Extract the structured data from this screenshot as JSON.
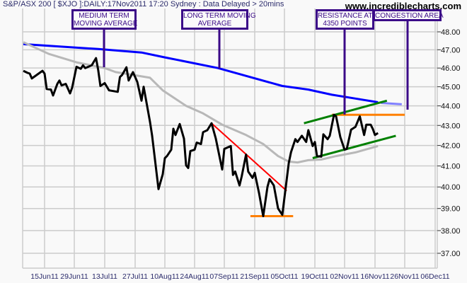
{
  "header": {
    "title": "S&P/ASX 200 [ $XJO ]:DAILY:17Nov2011 17:20 Sydney : Data Delayed > 20mins",
    "brand": "www.incrediblecharts.com"
  },
  "annotations": [
    {
      "line1": "MEDIUM TERM",
      "line2": "MOVING AVERAGE"
    },
    {
      "line1": "LONG TERM MOVING",
      "line2": "AVERAGE"
    },
    {
      "line1": "RESISTANCE AT",
      "line2": "4350 POINTS"
    },
    {
      "line1": "CONGESTION AREA",
      "line2": ""
    }
  ],
  "chart_data": {
    "type": "line",
    "title": "",
    "xlabel": "",
    "ylabel": "",
    "y_scale": "log",
    "ylim": [
      37,
      48
    ],
    "grid": true,
    "y_axis_position": "right",
    "y_ticks": [
      "48.00",
      "47.00",
      "46.00",
      "45.00",
      "44.00",
      "43.00",
      "42.00",
      "41.00",
      "40.00",
      "39.00",
      "38.00",
      "37.00"
    ],
    "x_ticks": [
      "15Jun11",
      "29Jun11",
      "13Jul11",
      "27Jul11",
      "10Aug11",
      "24Aug11",
      "07Sep11",
      "21Sep11",
      "05Oct11",
      "19Oct11",
      "02Nov11",
      "16Nov11",
      "26Nov11",
      "06Dec11"
    ],
    "colors": {
      "price": "#000000",
      "medium_ma": "#b8b8b8",
      "long_ma": "#0000ff",
      "long_ma_projection": "#8080ff",
      "downtrend": "#ff0000",
      "channel": "#008000",
      "support_resistance": "#ff8000",
      "annotation": "#3b0a88"
    },
    "series": [
      {
        "key": "price",
        "points": [
          [
            "2011-06-05",
            45.85
          ],
          [
            "2011-06-07",
            45.74
          ],
          [
            "2011-06-08",
            45.7
          ],
          [
            "2011-06-09",
            45.44
          ],
          [
            "2011-06-14",
            45.85
          ],
          [
            "2011-06-15",
            45.7
          ],
          [
            "2011-06-16",
            44.88
          ],
          [
            "2011-06-18",
            44.85
          ],
          [
            "2011-06-19",
            44.54
          ],
          [
            "2011-06-21",
            45.15
          ],
          [
            "2011-06-22",
            45.33
          ],
          [
            "2011-06-23",
            45.07
          ],
          [
            "2011-06-25",
            45.15
          ],
          [
            "2011-06-27",
            44.65
          ],
          [
            "2011-06-28",
            44.96
          ],
          [
            "2011-06-30",
            46.07
          ],
          [
            "2011-07-02",
            45.96
          ],
          [
            "2011-07-03",
            46.15
          ],
          [
            "2011-07-04",
            46.0
          ],
          [
            "2011-07-07",
            46.15
          ],
          [
            "2011-07-09",
            46.54
          ],
          [
            "2011-07-10",
            45.89
          ],
          [
            "2011-07-11",
            45.04
          ],
          [
            "2011-07-13",
            45.19
          ],
          [
            "2011-07-15",
            44.81
          ],
          [
            "2011-07-19",
            44.73
          ],
          [
            "2011-07-20",
            45.52
          ],
          [
            "2011-07-21",
            45.63
          ],
          [
            "2011-07-23",
            46.04
          ],
          [
            "2011-07-24",
            45.33
          ],
          [
            "2011-07-26",
            45.78
          ],
          [
            "2011-07-28",
            45.26
          ],
          [
            "2011-07-30",
            44.27
          ],
          [
            "2011-07-31",
            45.0
          ],
          [
            "2011-08-03",
            43.18
          ],
          [
            "2011-08-04",
            42.48
          ],
          [
            "2011-08-07",
            39.9
          ],
          [
            "2011-08-09",
            40.6
          ],
          [
            "2011-08-10",
            41.38
          ],
          [
            "2011-08-11",
            41.48
          ],
          [
            "2011-08-13",
            41.79
          ],
          [
            "2011-08-14",
            42.83
          ],
          [
            "2011-08-15",
            42.52
          ],
          [
            "2011-08-17",
            43.07
          ],
          [
            "2011-08-19",
            42.34
          ],
          [
            "2011-08-20",
            41.03
          ],
          [
            "2011-08-21",
            40.9
          ],
          [
            "2011-08-22",
            41.72
          ],
          [
            "2011-08-24",
            41.79
          ],
          [
            "2011-08-25",
            42.14
          ],
          [
            "2011-08-27",
            42.07
          ],
          [
            "2011-08-28",
            42.66
          ],
          [
            "2011-08-30",
            42.76
          ],
          [
            "2011-09-01",
            43.11
          ],
          [
            "2011-09-03",
            42.34
          ],
          [
            "2011-09-06",
            40.83
          ],
          [
            "2011-09-07",
            41.83
          ],
          [
            "2011-09-10",
            41.97
          ],
          [
            "2011-09-11",
            40.57
          ],
          [
            "2011-09-12",
            40.73
          ],
          [
            "2011-09-14",
            40.07
          ],
          [
            "2011-09-15",
            40.5
          ],
          [
            "2011-09-17",
            41.55
          ],
          [
            "2011-09-18",
            40.73
          ],
          [
            "2011-09-20",
            40.43
          ],
          [
            "2011-09-21",
            40.67
          ],
          [
            "2011-09-23",
            39.73
          ],
          [
            "2011-09-25",
            38.65
          ],
          [
            "2011-09-27",
            40.0
          ],
          [
            "2011-09-28",
            40.37
          ],
          [
            "2011-09-30",
            40.07
          ],
          [
            "2011-10-02",
            39.0
          ],
          [
            "2011-10-04",
            38.71
          ],
          [
            "2011-10-05",
            39.5
          ],
          [
            "2011-10-07",
            41.14
          ],
          [
            "2011-10-08",
            41.66
          ],
          [
            "2011-10-10",
            42.31
          ],
          [
            "2011-10-11",
            42.17
          ],
          [
            "2011-10-13",
            42.48
          ],
          [
            "2011-10-15",
            42.17
          ],
          [
            "2011-10-16",
            42.76
          ],
          [
            "2011-10-18",
            41.97
          ],
          [
            "2011-10-19",
            42.17
          ],
          [
            "2011-10-20",
            41.48
          ],
          [
            "2011-10-22",
            41.45
          ],
          [
            "2011-10-23",
            42.55
          ],
          [
            "2011-10-25",
            42.31
          ],
          [
            "2011-10-26",
            42.48
          ],
          [
            "2011-10-28",
            43.54
          ],
          [
            "2011-10-29",
            43.46
          ],
          [
            "2011-10-31",
            42.41
          ],
          [
            "2011-11-02",
            41.79
          ],
          [
            "2011-11-03",
            41.83
          ],
          [
            "2011-11-05",
            42.79
          ],
          [
            "2011-11-07",
            42.93
          ],
          [
            "2011-11-09",
            43.46
          ],
          [
            "2011-11-11",
            42.52
          ],
          [
            "2011-11-12",
            43.04
          ],
          [
            "2011-11-14",
            43.04
          ],
          [
            "2011-11-15",
            42.82
          ],
          [
            "2011-11-16",
            42.52
          ],
          [
            "2011-11-17",
            42.62
          ]
        ]
      },
      {
        "key": "medium_ma",
        "points": [
          [
            "2011-06-05",
            47.42
          ],
          [
            "2011-06-17",
            46.77
          ],
          [
            "2011-06-30",
            46.31
          ],
          [
            "2011-07-13",
            46.0
          ],
          [
            "2011-07-18",
            45.78
          ],
          [
            "2011-08-03",
            45.48
          ],
          [
            "2011-08-09",
            44.81
          ],
          [
            "2011-08-20",
            44.0
          ],
          [
            "2011-08-28",
            43.61
          ],
          [
            "2011-09-06",
            43.04
          ],
          [
            "2011-09-17",
            42.52
          ],
          [
            "2011-09-25",
            42.07
          ],
          [
            "2011-10-02",
            41.48
          ],
          [
            "2011-10-07",
            41.21
          ],
          [
            "2011-10-11",
            41.17
          ],
          [
            "2011-10-16",
            41.28
          ],
          [
            "2011-10-22",
            41.31
          ],
          [
            "2011-10-29",
            41.48
          ],
          [
            "2011-11-07",
            41.66
          ],
          [
            "2011-11-17",
            41.97
          ]
        ]
      },
      {
        "key": "long_ma",
        "points": [
          [
            "2011-06-05",
            47.31
          ],
          [
            "2011-07-10",
            47.04
          ],
          [
            "2011-07-30",
            46.85
          ],
          [
            "2011-08-10",
            46.58
          ],
          [
            "2011-09-04",
            46.0
          ],
          [
            "2011-10-04",
            45.04
          ],
          [
            "2011-10-16",
            44.85
          ],
          [
            "2011-10-27",
            44.58
          ],
          [
            "2011-11-07",
            44.38
          ],
          [
            "2011-11-17",
            44.19
          ]
        ]
      },
      {
        "key": "long_ma_projection",
        "points": [
          [
            "2011-11-18",
            44.15
          ],
          [
            "2011-11-25",
            44.08
          ]
        ]
      }
    ],
    "trendlines": [
      {
        "key": "downtrend",
        "points": [
          [
            "2011-09-01",
            43.11
          ],
          [
            "2011-10-06",
            39.82
          ]
        ]
      },
      {
        "key": "support_resistance",
        "points": [
          [
            "2011-09-19",
            38.65
          ],
          [
            "2011-10-09",
            38.65
          ]
        ]
      },
      {
        "key": "support_resistance",
        "points": [
          [
            "2011-10-27",
            43.54
          ],
          [
            "2011-11-26",
            43.54
          ]
        ]
      },
      {
        "key": "channel",
        "points": [
          [
            "2011-10-14",
            43.11
          ],
          [
            "2011-11-20",
            44.27
          ]
        ]
      },
      {
        "key": "channel",
        "points": [
          [
            "2011-10-18",
            41.38
          ],
          [
            "2011-11-23",
            42.48
          ]
        ]
      }
    ]
  }
}
